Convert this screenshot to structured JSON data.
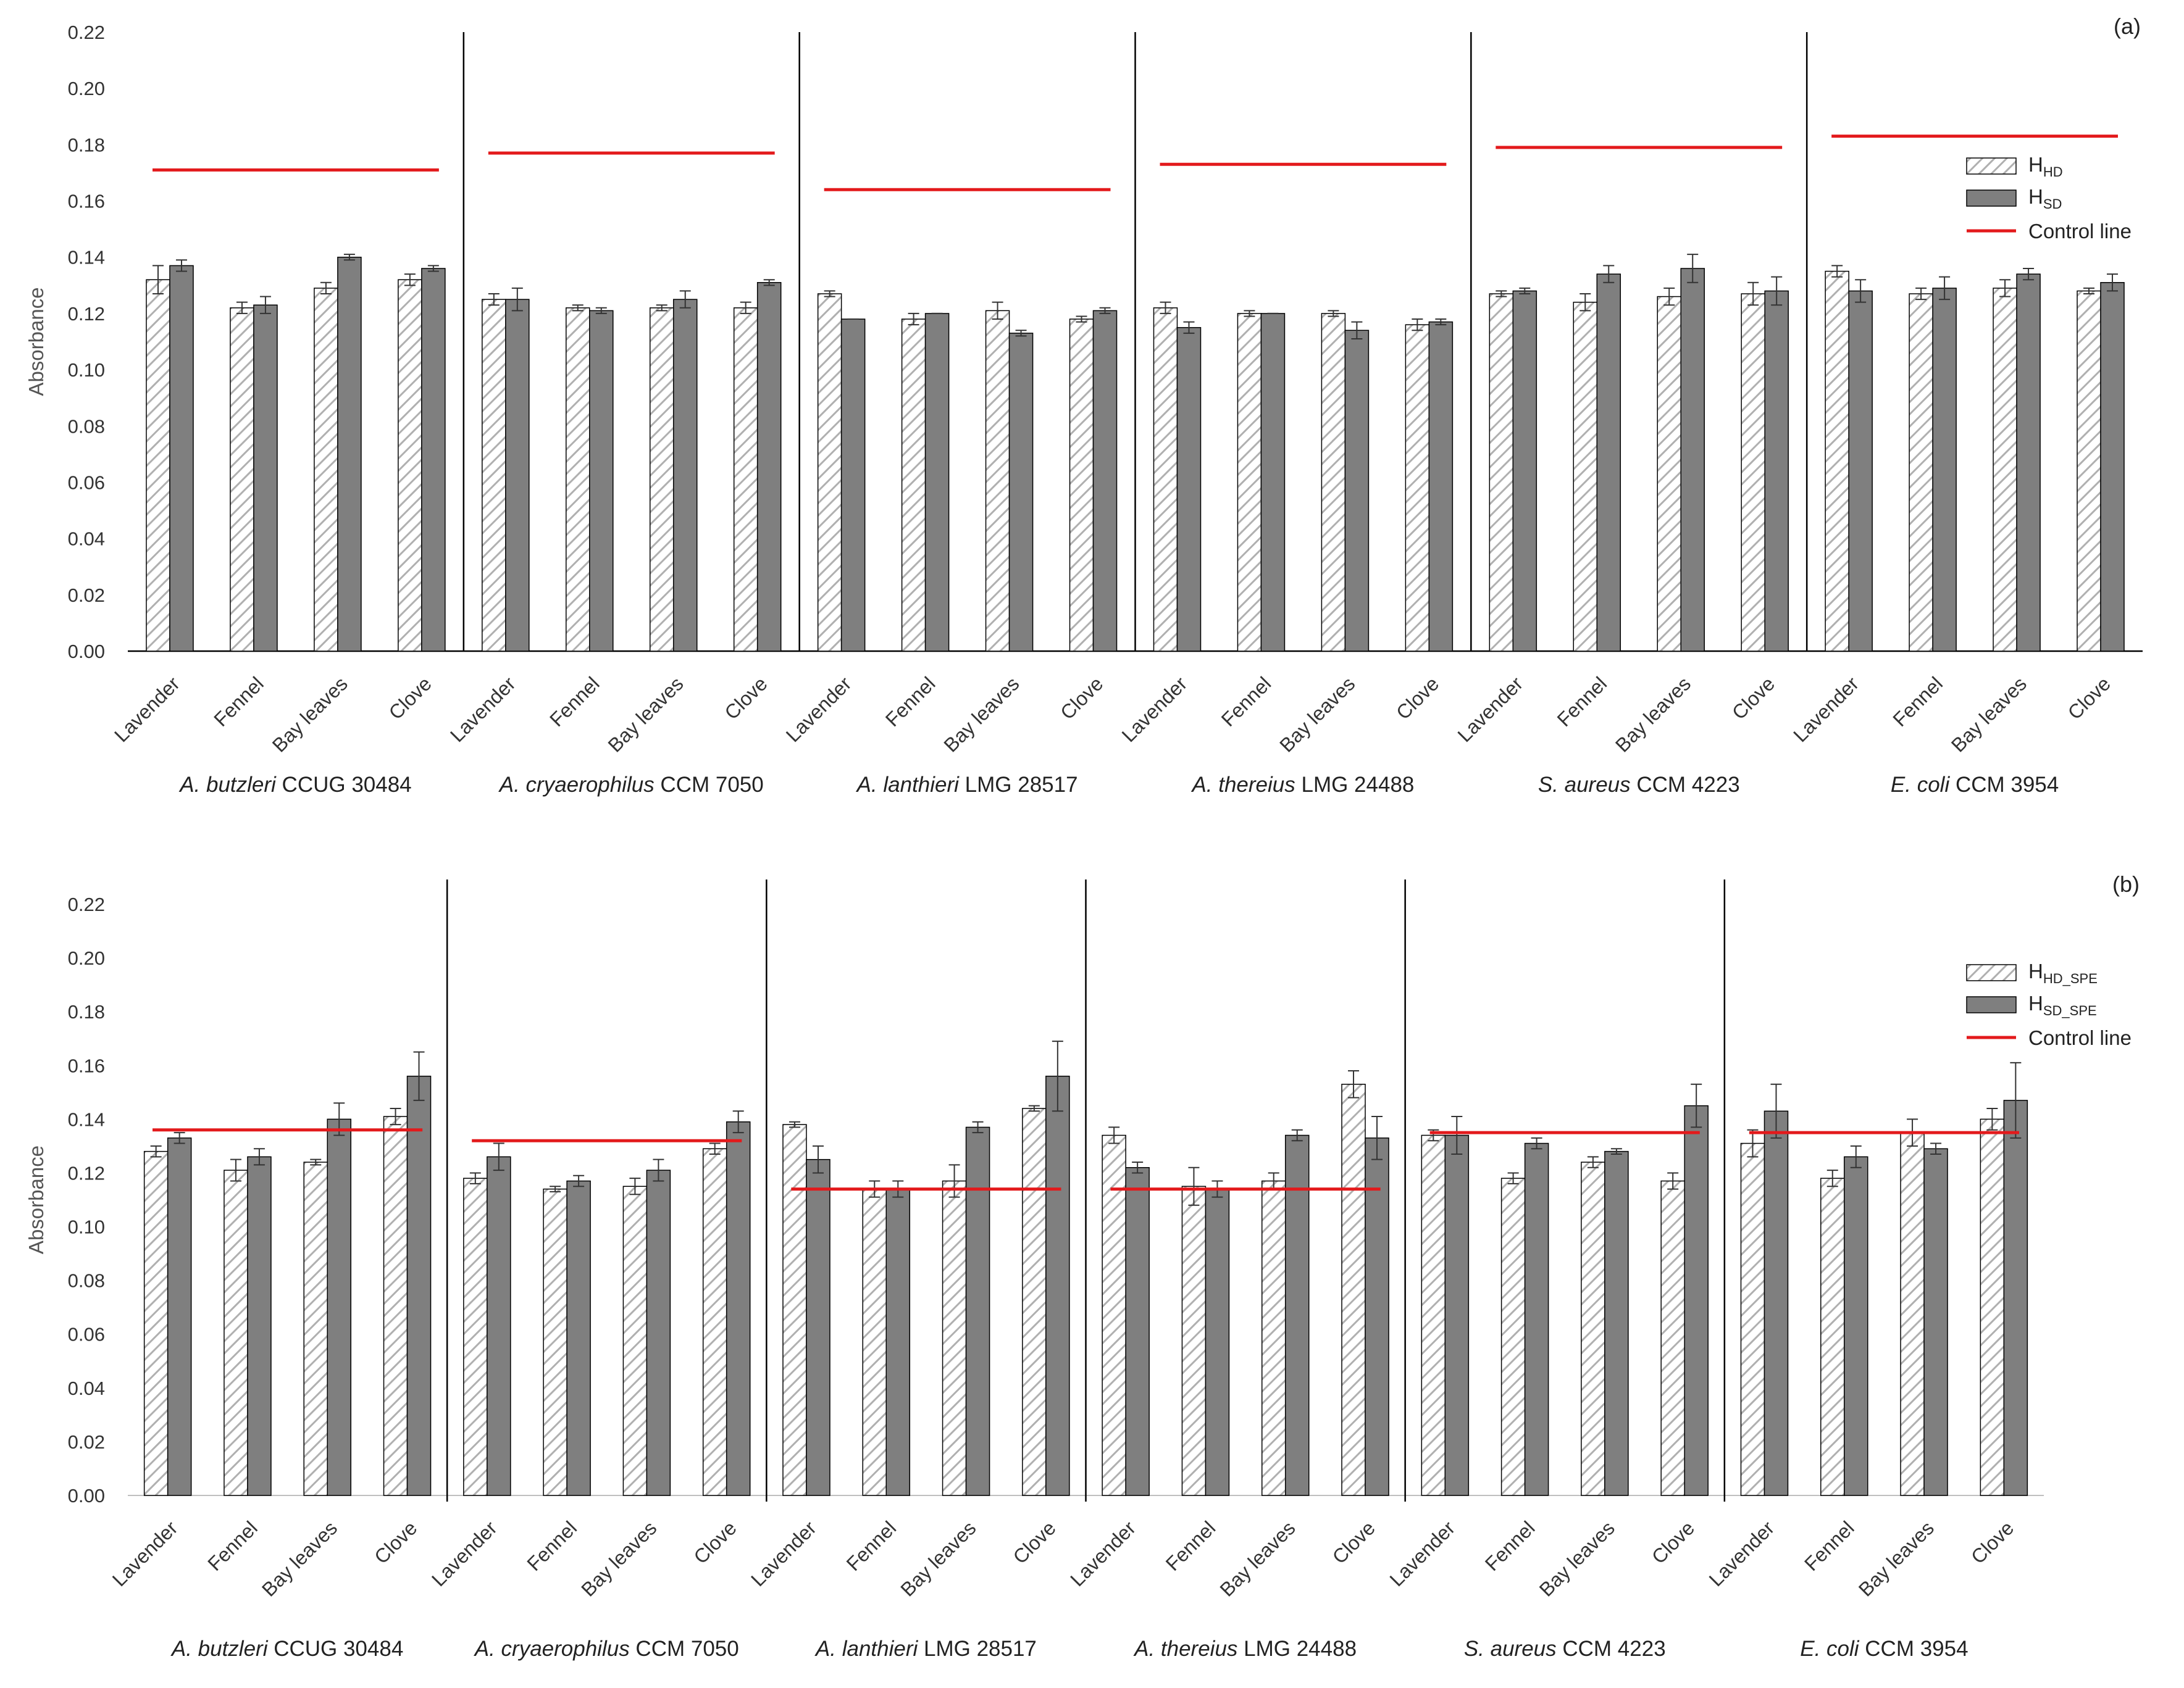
{
  "chart_data": [
    {
      "type": "bar",
      "panel_label": "(a)",
      "ylabel": "Absorbance",
      "ylim": [
        0,
        0.22
      ],
      "yticks": [
        "0.00",
        "0.02",
        "0.04",
        "0.06",
        "0.08",
        "0.10",
        "0.12",
        "0.14",
        "0.16",
        "0.18",
        "0.20",
        "0.22"
      ],
      "categories": [
        "Lavender",
        "Fennel",
        "Bay leaves",
        "Clove"
      ],
      "strains": [
        {
          "name": "A. butzleri",
          "suffix": " CCUG 30484",
          "control": 0.171,
          "s1": [
            0.132,
            0.122,
            0.129,
            0.132
          ],
          "e1": [
            0.005,
            0.002,
            0.002,
            0.002
          ],
          "s2": [
            0.137,
            0.123,
            0.14,
            0.136
          ],
          "e2": [
            0.002,
            0.003,
            0.001,
            0.001
          ]
        },
        {
          "name": "A. cryaerophilus",
          "suffix": " CCM 7050",
          "control": 0.177,
          "s1": [
            0.125,
            0.122,
            0.122,
            0.122
          ],
          "e1": [
            0.002,
            0.001,
            0.001,
            0.002
          ],
          "s2": [
            0.125,
            0.121,
            0.125,
            0.131
          ],
          "e2": [
            0.004,
            0.001,
            0.003,
            0.001
          ]
        },
        {
          "name": "A. lanthieri",
          "suffix": " LMG 28517",
          "control": 0.164,
          "s1": [
            0.127,
            0.118,
            0.121,
            0.118
          ],
          "e1": [
            0.001,
            0.002,
            0.003,
            0.001
          ],
          "s2": [
            0.118,
            0.12,
            0.113,
            0.121
          ],
          "e2": [
            0.0,
            0.0,
            0.001,
            0.001
          ]
        },
        {
          "name": "A. thereius",
          "suffix": " LMG 24488",
          "control": 0.173,
          "s1": [
            0.122,
            0.12,
            0.12,
            0.116
          ],
          "e1": [
            0.002,
            0.001,
            0.001,
            0.002
          ],
          "s2": [
            0.115,
            0.12,
            0.114,
            0.117
          ],
          "e2": [
            0.002,
            0.0,
            0.003,
            0.001
          ]
        },
        {
          "name": "S. aureus",
          "suffix": " CCM 4223",
          "control": 0.179,
          "s1": [
            0.127,
            0.124,
            0.126,
            0.127
          ],
          "e1": [
            0.001,
            0.003,
            0.003,
            0.004
          ],
          "s2": [
            0.128,
            0.134,
            0.136,
            0.128
          ],
          "e2": [
            0.001,
            0.003,
            0.005,
            0.005
          ]
        },
        {
          "name": "E. coli",
          "suffix": " CCM 3954",
          "control": 0.183,
          "s1": [
            0.135,
            0.127,
            0.129,
            0.128
          ],
          "e1": [
            0.002,
            0.002,
            0.003,
            0.001
          ],
          "s2": [
            0.128,
            0.129,
            0.134,
            0.131
          ],
          "e2": [
            0.004,
            0.004,
            0.002,
            0.003
          ]
        }
      ],
      "legend": {
        "s1_base": "H",
        "s1_sub": "HD",
        "s2_base": "H",
        "s2_sub": "SD",
        "control": "Control line"
      }
    },
    {
      "type": "bar",
      "panel_label": "(b)",
      "ylabel": "Absorbance",
      "ylim": [
        0,
        0.22
      ],
      "yticks": [
        "0.00",
        "0.02",
        "0.04",
        "0.06",
        "0.08",
        "0.10",
        "0.12",
        "0.14",
        "0.16",
        "0.18",
        "0.20",
        "0.22"
      ],
      "categories": [
        "Lavender",
        "Fennel",
        "Bay leaves",
        "Clove"
      ],
      "strains": [
        {
          "name": "A. butzleri",
          "suffix": " CCUG 30484",
          "control": 0.136,
          "s1": [
            0.128,
            0.121,
            0.124,
            0.141
          ],
          "e1": [
            0.002,
            0.004,
            0.001,
            0.003
          ],
          "s2": [
            0.133,
            0.126,
            0.14,
            0.156
          ],
          "e2": [
            0.002,
            0.003,
            0.006,
            0.009
          ]
        },
        {
          "name": "A. cryaerophilus",
          "suffix": " CCM 7050",
          "control": 0.132,
          "s1": [
            0.118,
            0.114,
            0.115,
            0.129
          ],
          "e1": [
            0.002,
            0.001,
            0.003,
            0.002
          ],
          "s2": [
            0.126,
            0.117,
            0.121,
            0.139
          ],
          "e2": [
            0.005,
            0.002,
            0.004,
            0.004
          ]
        },
        {
          "name": "A. lanthieri",
          "suffix": " LMG 28517",
          "control": 0.114,
          "s1": [
            0.138,
            0.114,
            0.117,
            0.144
          ],
          "e1": [
            0.001,
            0.003,
            0.006,
            0.001
          ],
          "s2": [
            0.125,
            0.114,
            0.137,
            0.156
          ],
          "e2": [
            0.005,
            0.003,
            0.002,
            0.013
          ]
        },
        {
          "name": "A. thereius",
          "suffix": " LMG 24488",
          "control": 0.114,
          "s1": [
            0.134,
            0.115,
            0.117,
            0.153
          ],
          "e1": [
            0.003,
            0.007,
            0.003,
            0.005
          ],
          "s2": [
            0.122,
            0.114,
            0.134,
            0.133
          ],
          "e2": [
            0.002,
            0.003,
            0.002,
            0.008
          ]
        },
        {
          "name": "S. aureus",
          "suffix": " CCM 4223",
          "control": 0.135,
          "s1": [
            0.134,
            0.118,
            0.124,
            0.117
          ],
          "e1": [
            0.002,
            0.002,
            0.002,
            0.003
          ],
          "s2": [
            0.134,
            0.131,
            0.128,
            0.145
          ],
          "e2": [
            0.007,
            0.002,
            0.001,
            0.008
          ]
        },
        {
          "name": "E. coli",
          "suffix": " CCM 3954",
          "control": 0.135,
          "s1": [
            0.131,
            0.118,
            0.135,
            0.14
          ],
          "e1": [
            0.005,
            0.003,
            0.005,
            0.004
          ],
          "s2": [
            0.143,
            0.126,
            0.129,
            0.147
          ],
          "e2": [
            0.01,
            0.004,
            0.002,
            0.014
          ]
        }
      ],
      "legend": {
        "s1_base": "H",
        "s1_sub": "HD_SPE",
        "s2_base": "H",
        "s2_sub": "SD_SPE",
        "control": "Control line"
      }
    }
  ],
  "colors": {
    "bar_dark": "#7f7f7f",
    "bar_hatch_line": "#b0b0b0",
    "control": "#e31a1c",
    "axis": "#000000",
    "error": "#333333"
  }
}
